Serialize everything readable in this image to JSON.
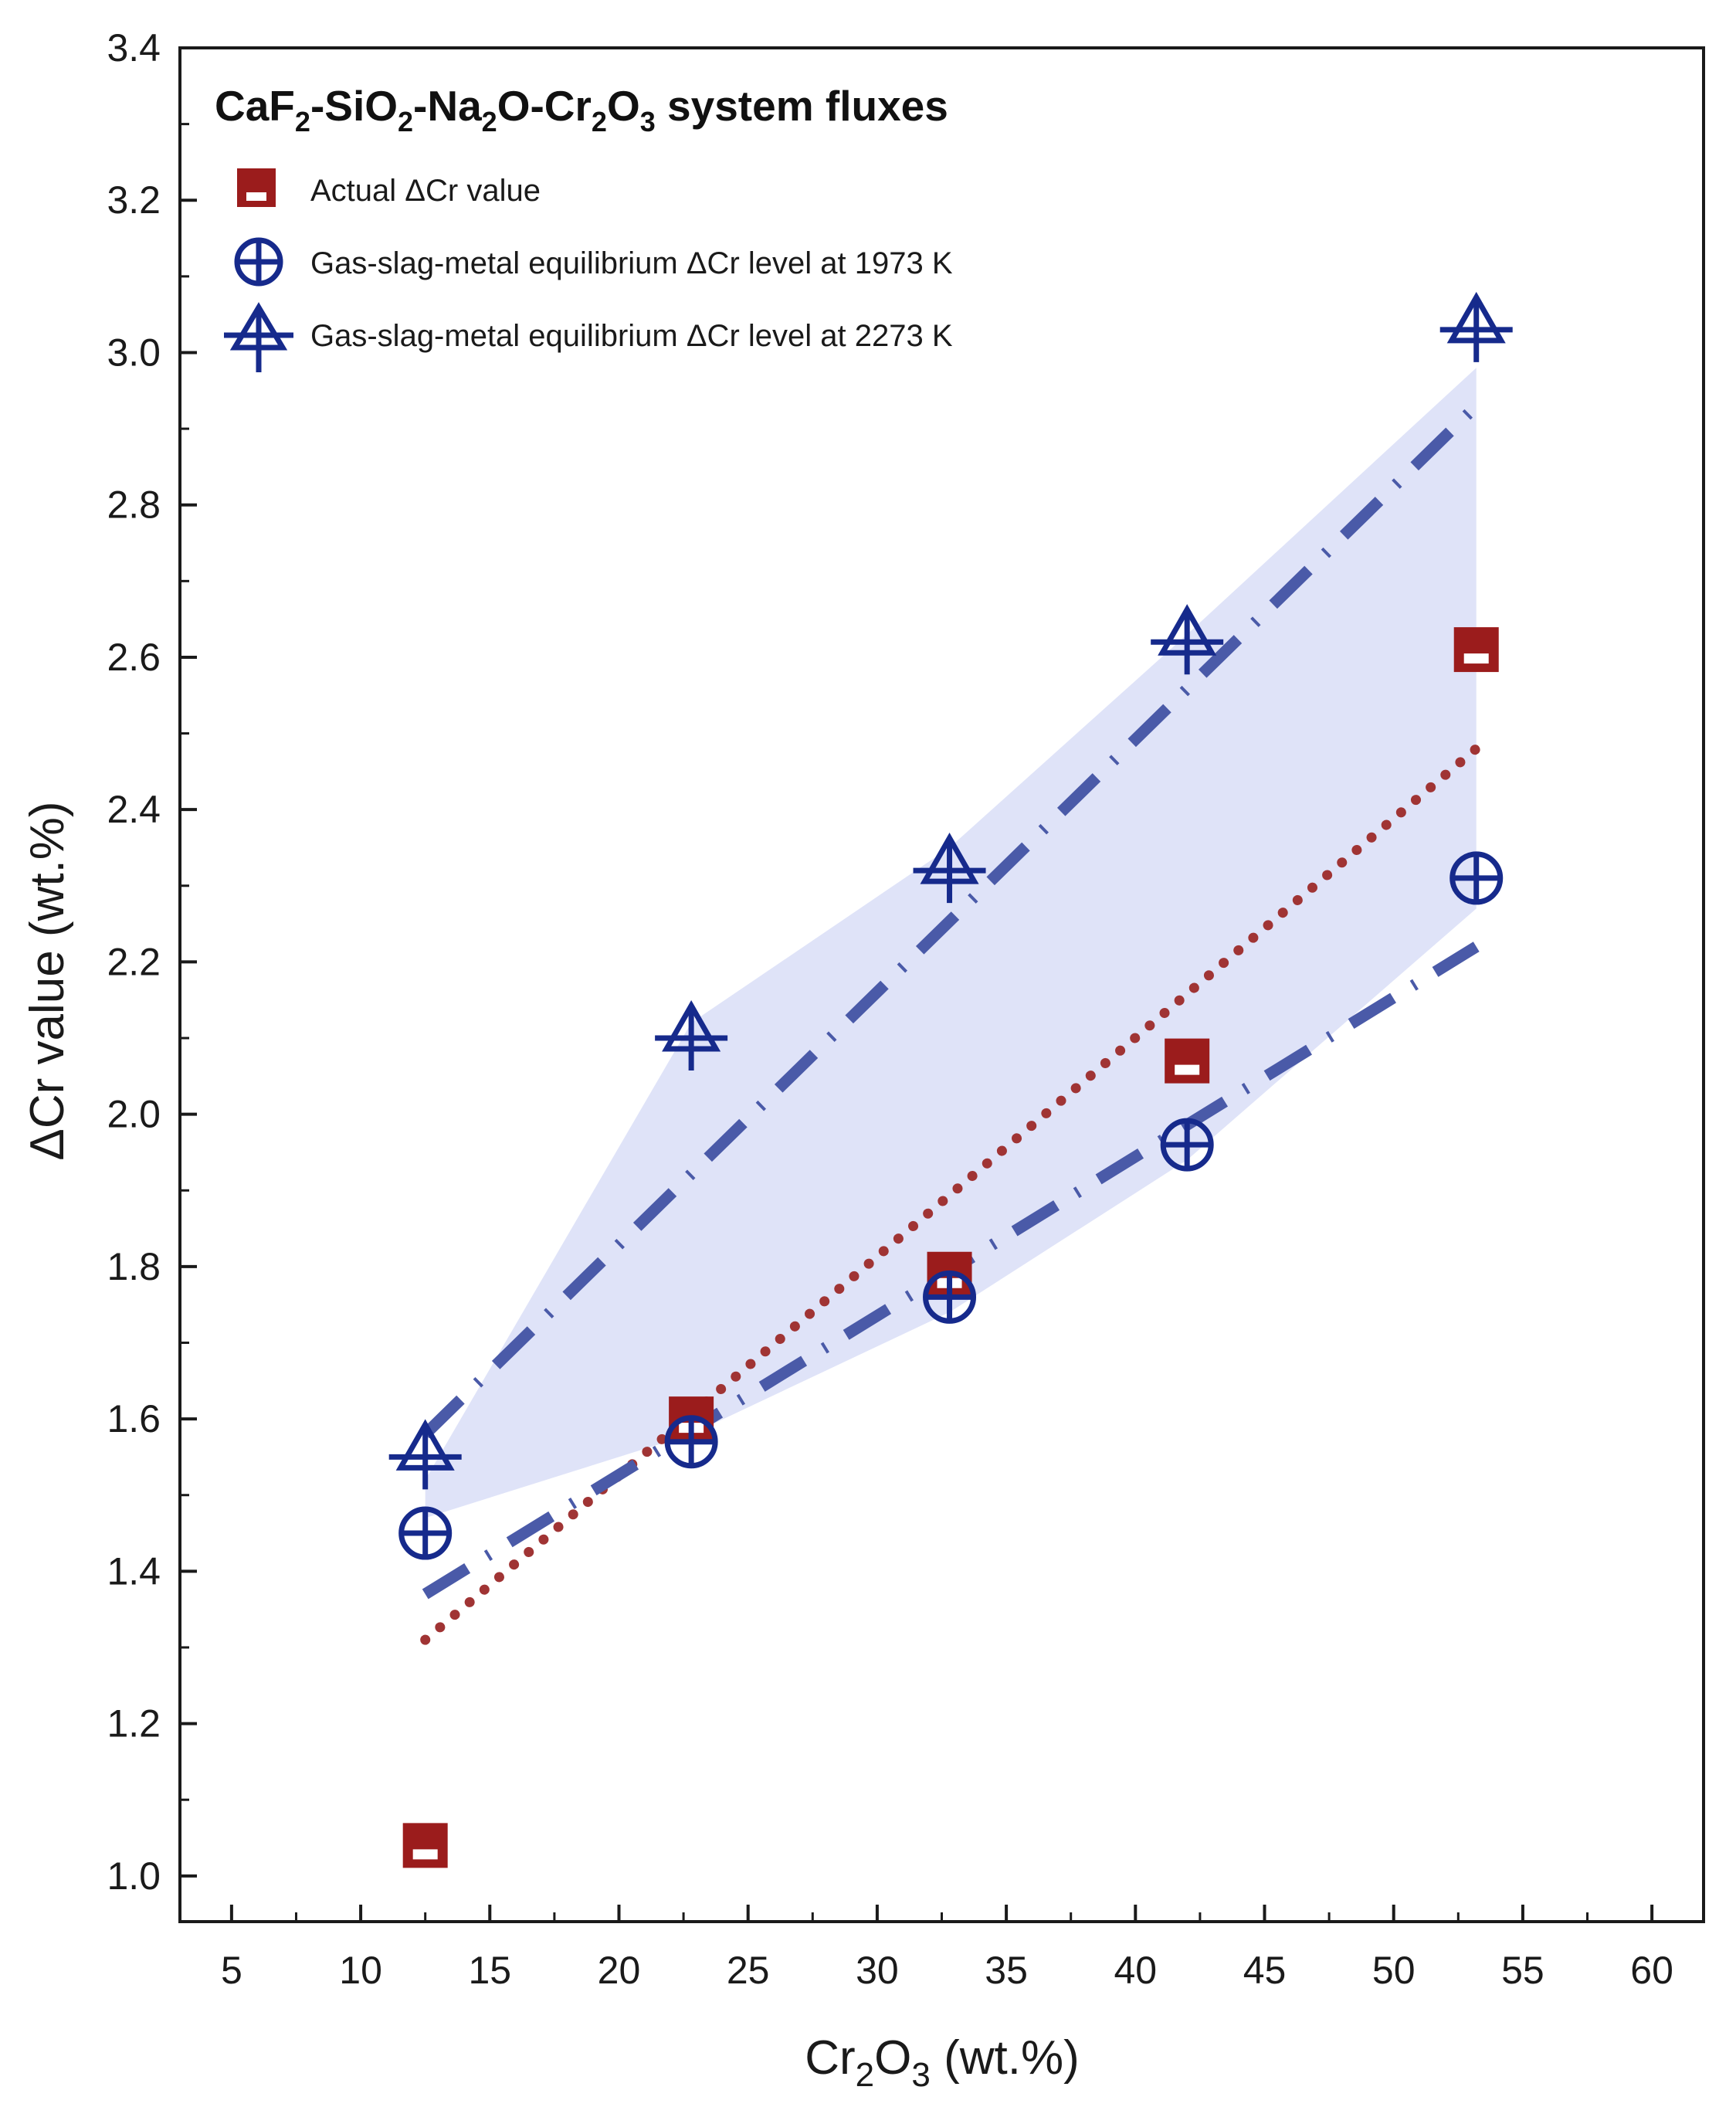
{
  "chart_data": {
    "type": "scatter",
    "title": "CaF2-SiO2-Na2O-Cr2O3 system fluxes",
    "title_parts": {
      "p1": "CaF",
      "s1": "2",
      "p2": "-SiO",
      "s2": "2",
      "p3": "-Na",
      "s3": "2",
      "p4": "O-Cr",
      "s4": "2",
      "p5": "O",
      "s5": "3",
      "p6": " system fluxes"
    },
    "xlabel": "Cr2O3 (wt.%)",
    "xlabel_parts": {
      "p1": "Cr",
      "s1": "2",
      "p2": "O",
      "s2": "3",
      "p3": " (wt.%)"
    },
    "ylabel": "ΔCr value (wt.%)",
    "xlim": [
      3,
      62
    ],
    "ylim": [
      0.94,
      3.4
    ],
    "x_ticks": [
      5,
      10,
      15,
      20,
      25,
      30,
      35,
      40,
      45,
      50,
      55,
      60
    ],
    "y_ticks": [
      1.0,
      1.2,
      1.4,
      1.6,
      1.8,
      2.0,
      2.2,
      2.4,
      2.6,
      2.8,
      3.0,
      3.2,
      3.4
    ],
    "y_tick_labels": [
      "1.0",
      "1.2",
      "1.4",
      "1.6",
      "1.8",
      "2.0",
      "2.2",
      "2.4",
      "2.6",
      "2.8",
      "3.0",
      "3.2",
      "3.4"
    ],
    "series": [
      {
        "name": "Actual ΔCr value",
        "marker": "half-filled-square",
        "color": "#9b1c1c",
        "x": [
          12.5,
          22.8,
          32.8,
          42.0,
          53.2
        ],
        "y": [
          1.04,
          1.6,
          1.79,
          2.07,
          2.61
        ]
      },
      {
        "name": "Gas-slag-metal equilibrium ΔCr level at 1973 K",
        "marker": "circle-plus",
        "color": "#162a8c",
        "x": [
          12.5,
          22.8,
          32.8,
          42.0,
          53.2
        ],
        "y": [
          1.45,
          1.57,
          1.76,
          1.96,
          2.31
        ]
      },
      {
        "name": "Gas-slag-metal equilibrium ΔCr level at 2273 K",
        "marker": "triangle-cross",
        "color": "#162a8c",
        "x": [
          12.5,
          22.8,
          32.8,
          42.0,
          53.2
        ],
        "y": [
          1.55,
          2.1,
          2.32,
          2.62,
          3.03
        ]
      }
    ],
    "fits": [
      {
        "name": "Actual ΔCr trend",
        "style": "dotted",
        "color": "#a03434",
        "x": [
          12.5,
          53.2
        ],
        "y": [
          1.31,
          2.48
        ]
      },
      {
        "name": "1973 K trend",
        "style": "dash-dot",
        "color": "#4a5aa8",
        "x": [
          12.5,
          53.2
        ],
        "y": [
          1.37,
          2.22
        ]
      },
      {
        "name": "2273 K trend",
        "style": "dash-dot",
        "color": "#4a5aa8",
        "x": [
          12.5,
          53.2
        ],
        "y": [
          1.58,
          2.93
        ]
      }
    ],
    "band": {
      "color": "#dfe3f8",
      "upper": {
        "x": [
          12.5,
          22.8,
          32.8,
          42.0,
          53.2
        ],
        "y": [
          1.52,
          2.12,
          2.35,
          2.63,
          2.98
        ]
      },
      "lower": {
        "x": [
          12.5,
          22.8,
          32.8,
          42.0,
          53.2
        ],
        "y": [
          1.47,
          1.58,
          1.74,
          1.94,
          2.27
        ]
      }
    },
    "legend_position": "top-left"
  }
}
